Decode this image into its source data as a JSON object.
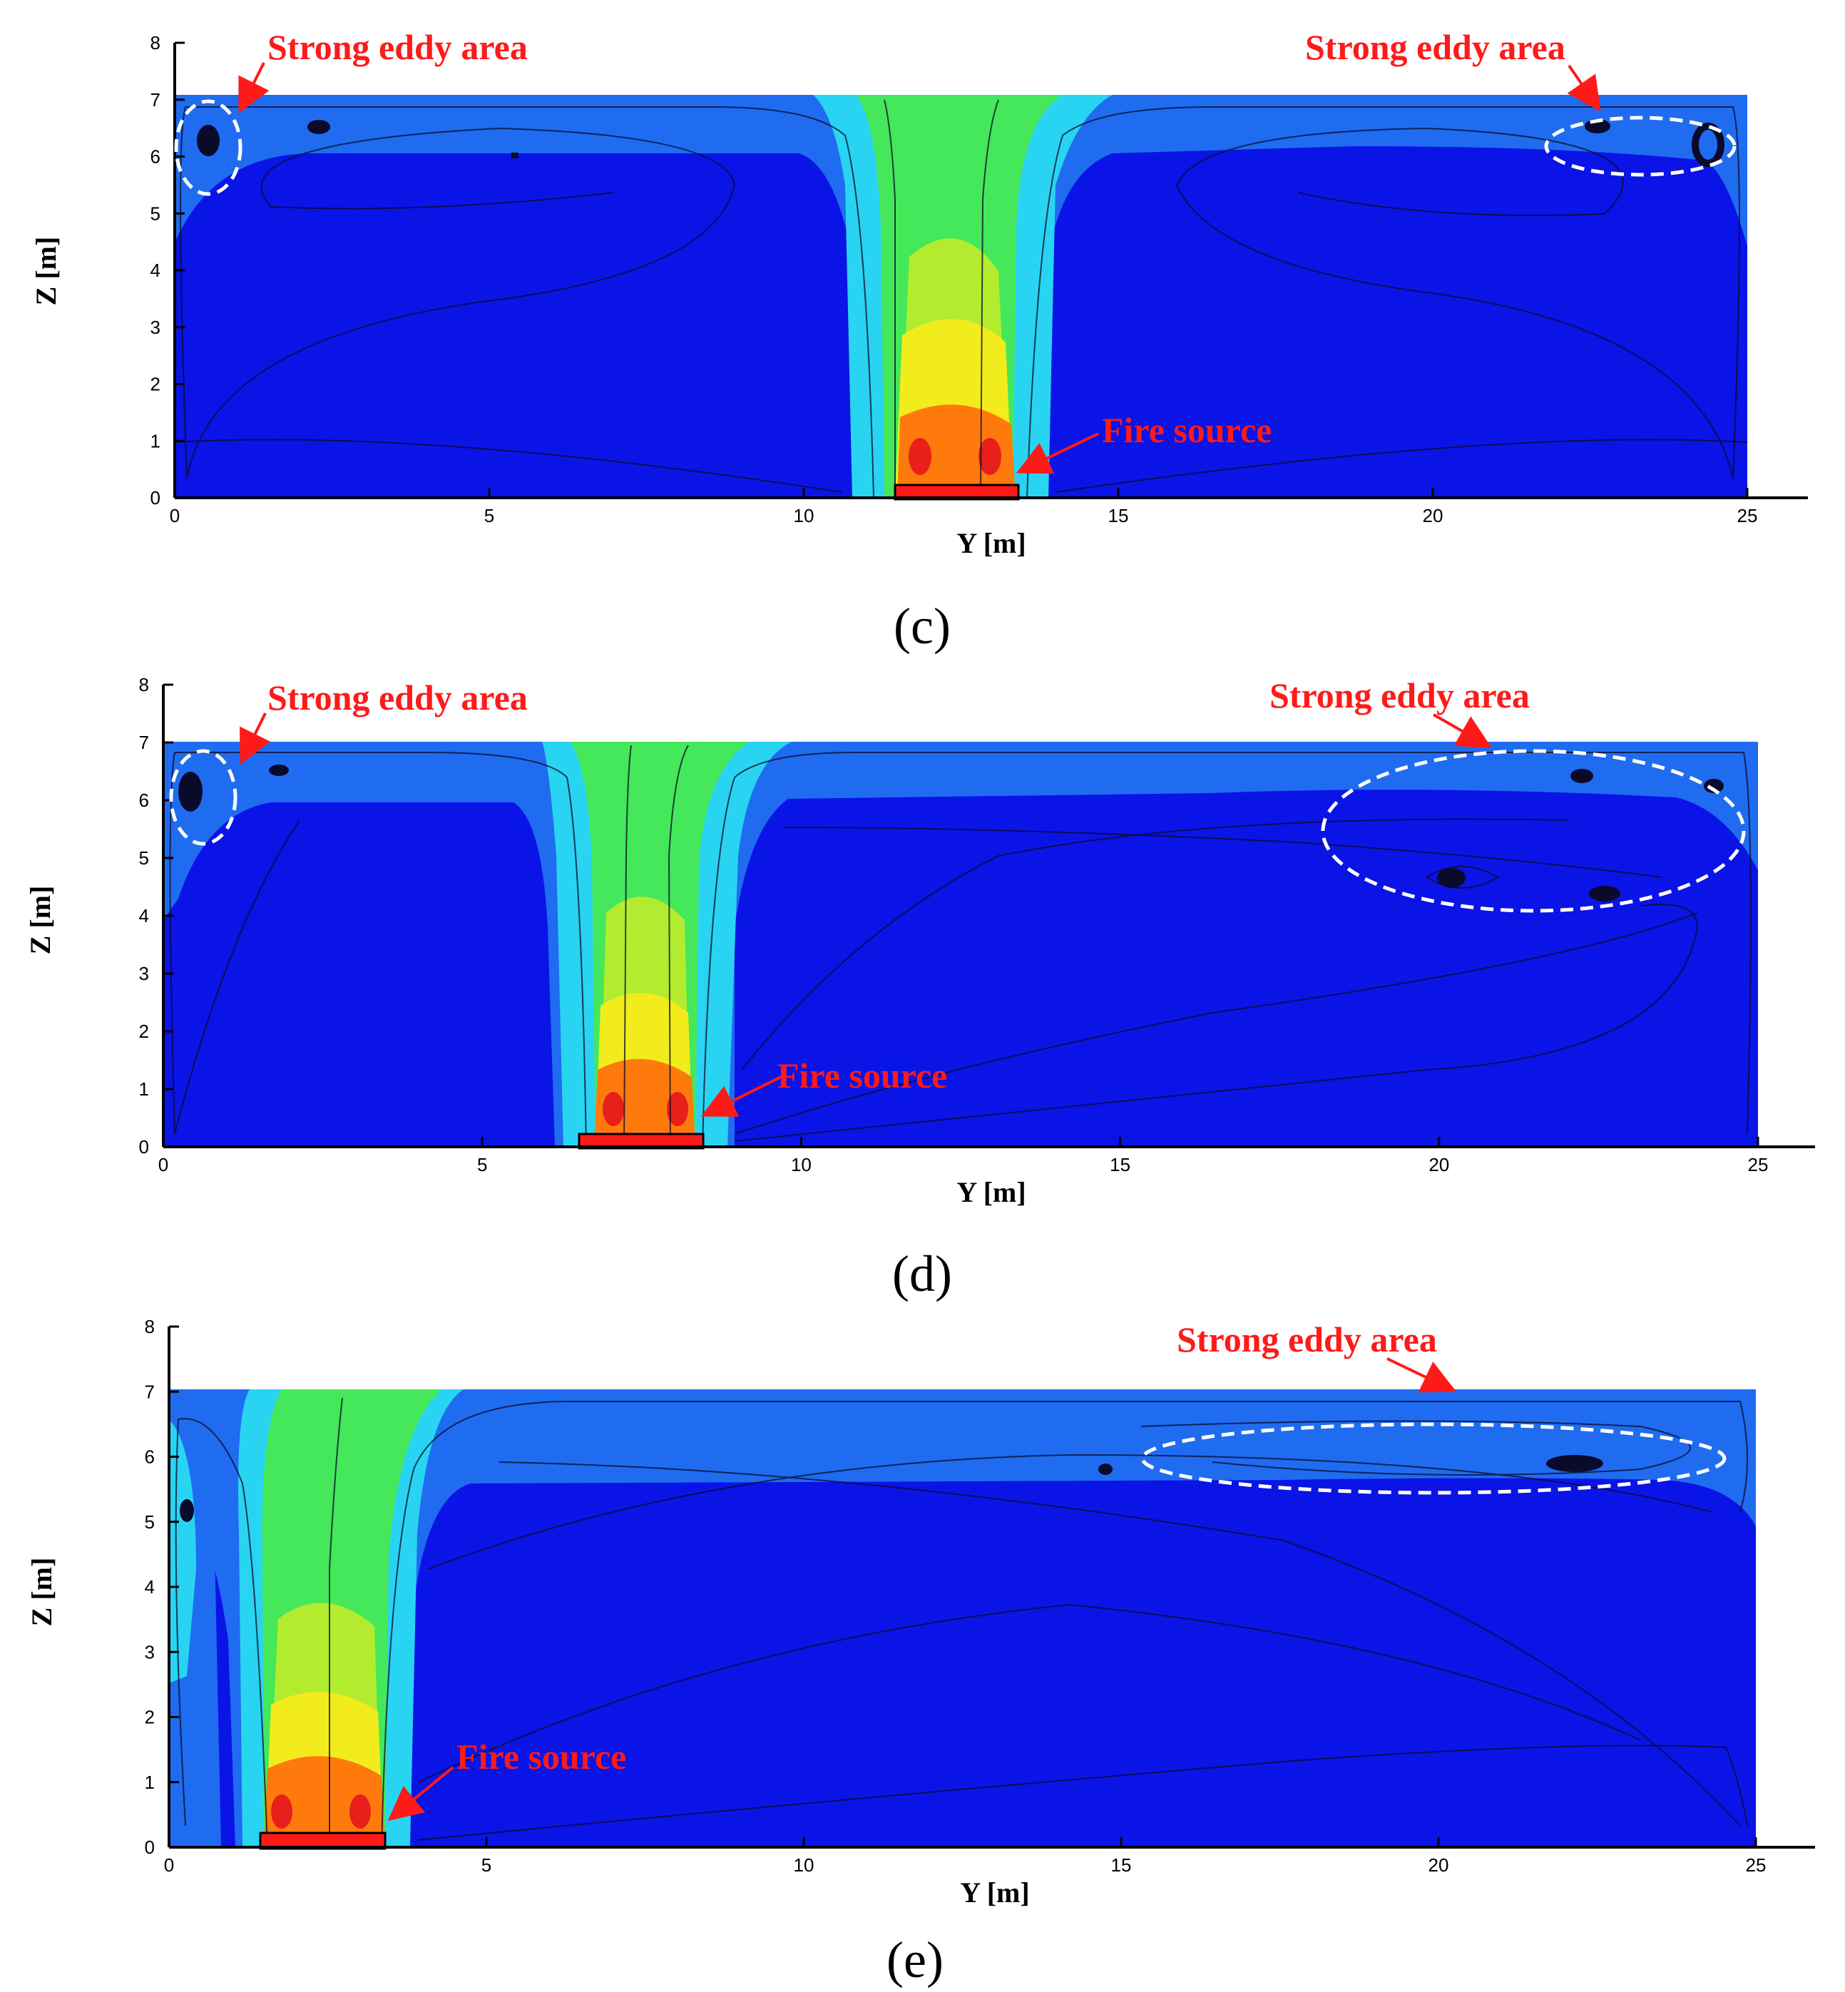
{
  "panels": [
    {
      "id": "c",
      "caption": "(c)",
      "xlabel": "Y [m]",
      "ylabel": "Z [m]",
      "xticks": [
        "0",
        "5",
        "10",
        "15",
        "20",
        "25"
      ],
      "yticks": [
        "0",
        "1",
        "2",
        "3",
        "4",
        "5",
        "6",
        "7",
        "8"
      ],
      "fire_label": "Fire source",
      "eddy_labels": [
        "Strong eddy area",
        "Strong eddy area"
      ]
    },
    {
      "id": "d",
      "caption": "(d)",
      "xlabel": "Y [m]",
      "ylabel": "Z [m]",
      "xticks": [
        "0",
        "5",
        "10",
        "15",
        "20",
        "25"
      ],
      "yticks": [
        "0",
        "1",
        "2",
        "3",
        "4",
        "5",
        "6",
        "7",
        "8"
      ],
      "fire_label": "Fire source",
      "eddy_labels": [
        "Strong eddy area",
        "Strong eddy area"
      ]
    },
    {
      "id": "e",
      "caption": "(e)",
      "xlabel": "Y [m]",
      "ylabel": "Z [m]",
      "xticks": [
        "0",
        "5",
        "10",
        "15",
        "20",
        "25"
      ],
      "yticks": [
        "0",
        "1",
        "2",
        "3",
        "4",
        "5",
        "6",
        "7",
        "8"
      ],
      "fire_label": "Fire source",
      "eddy_labels": [
        "Strong eddy area"
      ]
    }
  ],
  "colors": {
    "background_flow": "#0a14e6",
    "ceiling_layer": "#1f6cf0",
    "plume_cyan": "#29d4f2",
    "plume_green": "#45e85a",
    "plume_yellow": "#f2ec1c",
    "plume_orange": "#ff7a0d",
    "plume_red": "#e81f1a",
    "fire_box": "#ff1a1a",
    "annotation": "#ff1a1a"
  }
}
